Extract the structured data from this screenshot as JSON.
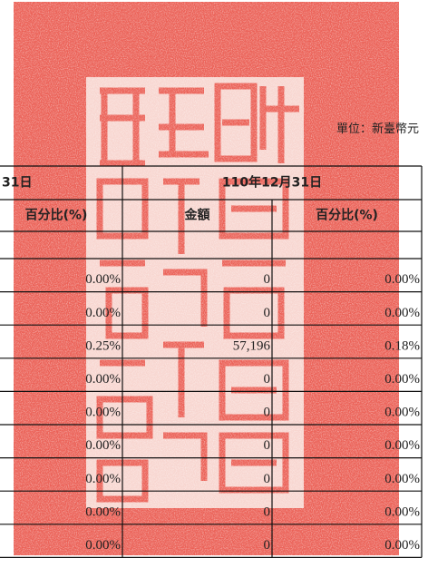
{
  "header": {
    "unit": "單位：新臺幣元"
  },
  "table": {
    "header_row1": [
      "31日",
      "110年12月31日"
    ],
    "header_row2": [
      "百分比(%)",
      "金額",
      "百分比(%)"
    ],
    "rows": [
      [
        "0.00%",
        "0",
        "0.00%"
      ],
      [
        "0.00%",
        "0",
        "0.00%"
      ],
      [
        "0.25%",
        "57,196",
        "0.18%"
      ],
      [
        "0.00%",
        "0",
        "0.00%"
      ],
      [
        "0.00%",
        "0",
        "0.00%"
      ],
      [
        "0.00%",
        "0",
        "0.00%"
      ],
      [
        "0.00%",
        "0",
        "0.00%"
      ],
      [
        "0.00%",
        "0",
        "0.00%"
      ],
      [
        "0.00%",
        "0",
        "0.00%"
      ]
    ]
  }
}
